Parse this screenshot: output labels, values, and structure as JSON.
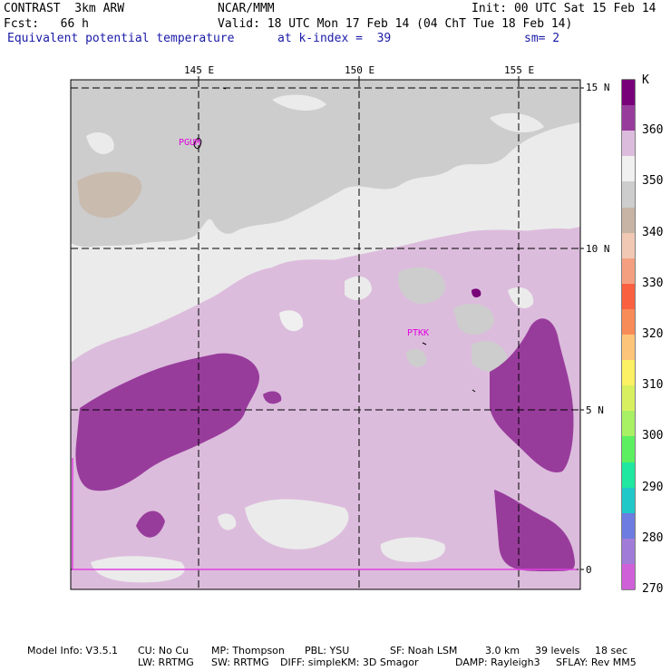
{
  "header": {
    "model_name": "CONTRAST  3km ARW",
    "center": "NCAR/MMM",
    "init": "Init: 00 UTC Sat 15 Feb 14",
    "fcst": "Fcst:   66 h",
    "valid": "Valid: 18 UTC Mon 17 Feb 14 (04 ChT Tue 18 Feb 14)",
    "field": "Equivalent potential temperature",
    "level": "at k-index =  39",
    "smoothing": "sm= 2"
  },
  "map": {
    "lon_ticks": [
      "145 E",
      "150 E",
      "155 E"
    ],
    "lat_ticks": [
      "15 N",
      "10 N",
      "5 N",
      "0"
    ],
    "stations": [
      "PGUM",
      "PTKK"
    ],
    "colors": {
      "bg_pink": "#dcbcdc",
      "light_gray": "#ebebeb",
      "gray": "#cccccc",
      "tan": "#c8b4a4",
      "purple": "#943c9c",
      "pale": "#f0f0f0"
    }
  },
  "colorbar": {
    "unit": "K",
    "labels": [
      "360",
      "350",
      "340",
      "330",
      "320",
      "310",
      "300",
      "290",
      "280",
      "270"
    ],
    "colors": [
      "#780078",
      "#983c9c",
      "#dcbcdc",
      "#f0f0f0",
      "#cdcdcd",
      "#c8b4a4",
      "#f0c8b4",
      "#f4a080",
      "#f86040",
      "#f88c58",
      "#fcc478",
      "#fcf064",
      "#d8f060",
      "#a8f064",
      "#5cf060",
      "#20e8a0",
      "#20c8c8",
      "#6c7ce0",
      "#a07cd8",
      "#d060d8"
    ]
  },
  "footer": {
    "line1": [
      "Model Info: V3.5.1",
      "CU: No Cu",
      "MP: Thompson",
      "PBL: YSU",
      "SF: Noah LSM",
      "3.0 km",
      "39 levels",
      "18 sec"
    ],
    "line2": [
      "LW: RRTMG",
      "SW: RRTMG",
      "DIFF: simple",
      "KM: 3D Smagor",
      "DAMP: Rayleigh3",
      "SFLAY: Rev MM5"
    ]
  }
}
